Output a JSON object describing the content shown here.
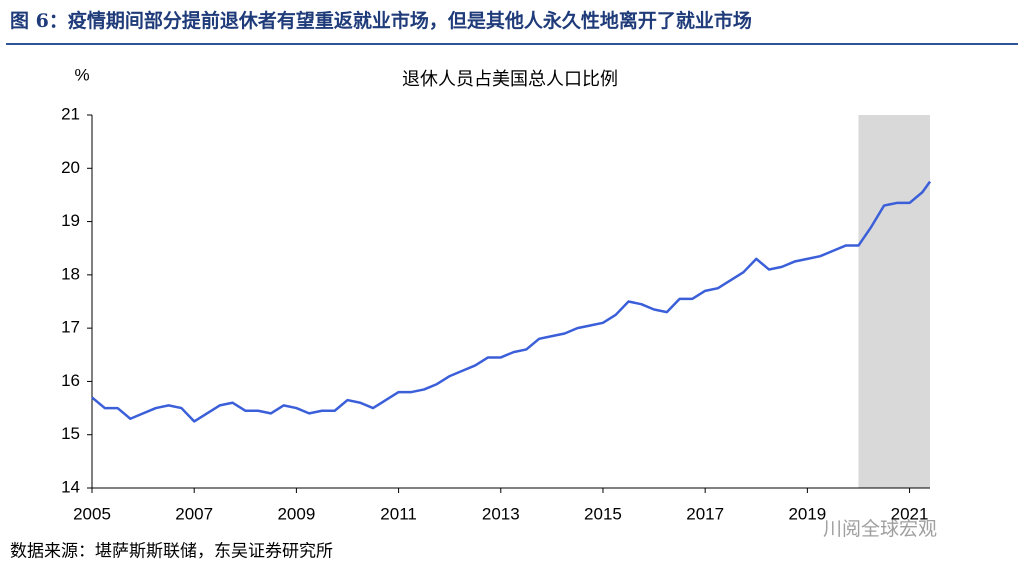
{
  "header": {
    "title": "图 6：疫情期间部分提前退休者有望重返就业市场，但是其他人永久性地离开了就业市场"
  },
  "chart_data": {
    "type": "line",
    "title": "退休人员占美国总人口比例",
    "y_label": "%",
    "x": [
      2005.0,
      2005.25,
      2005.5,
      2005.75,
      2006.0,
      2006.25,
      2006.5,
      2006.75,
      2007.0,
      2007.25,
      2007.5,
      2007.75,
      2008.0,
      2008.25,
      2008.5,
      2008.75,
      2009.0,
      2009.25,
      2009.5,
      2009.75,
      2010.0,
      2010.25,
      2010.5,
      2010.75,
      2011.0,
      2011.25,
      2011.5,
      2011.75,
      2012.0,
      2012.25,
      2012.5,
      2012.75,
      2013.0,
      2013.25,
      2013.5,
      2013.75,
      2014.0,
      2014.25,
      2014.5,
      2014.75,
      2015.0,
      2015.25,
      2015.5,
      2015.75,
      2016.0,
      2016.25,
      2016.5,
      2016.75,
      2017.0,
      2017.25,
      2017.5,
      2017.75,
      2018.0,
      2018.25,
      2018.5,
      2018.75,
      2019.0,
      2019.25,
      2019.5,
      2019.75,
      2020.0,
      2020.25,
      2020.5,
      2020.75,
      2021.0,
      2021.25,
      2021.4
    ],
    "series": [
      {
        "name": "退休人员占美国总人口比例",
        "color": "#3b5fd9",
        "values": [
          15.7,
          15.5,
          15.5,
          15.3,
          15.4,
          15.5,
          15.55,
          15.5,
          15.25,
          15.4,
          15.55,
          15.6,
          15.45,
          15.45,
          15.4,
          15.55,
          15.5,
          15.4,
          15.45,
          15.45,
          15.65,
          15.6,
          15.5,
          15.65,
          15.8,
          15.8,
          15.85,
          15.95,
          16.1,
          16.2,
          16.3,
          16.45,
          16.45,
          16.55,
          16.6,
          16.8,
          16.85,
          16.9,
          17.0,
          17.05,
          17.1,
          17.25,
          17.5,
          17.45,
          17.35,
          17.3,
          17.55,
          17.55,
          17.7,
          17.75,
          17.9,
          18.05,
          18.3,
          18.1,
          18.15,
          18.25,
          18.3,
          18.35,
          18.45,
          18.55,
          18.55,
          18.9,
          19.3,
          19.35,
          19.35,
          19.55,
          19.75
        ]
      }
    ],
    "xlim": [
      2005,
      2021.4
    ],
    "xticks": [
      2005,
      2007,
      2009,
      2011,
      2013,
      2015,
      2017,
      2019,
      2021
    ],
    "ylim": [
      14,
      21
    ],
    "yticks": [
      14,
      15,
      16,
      17,
      18,
      19,
      20,
      21
    ],
    "shaded_region": [
      2020,
      2021.4
    ],
    "shade_color": "#d9d9d9"
  },
  "footer": {
    "source": "数据来源：堪萨斯斯联储，东吴证券研究所",
    "watermark": "川阅全球宏观"
  }
}
